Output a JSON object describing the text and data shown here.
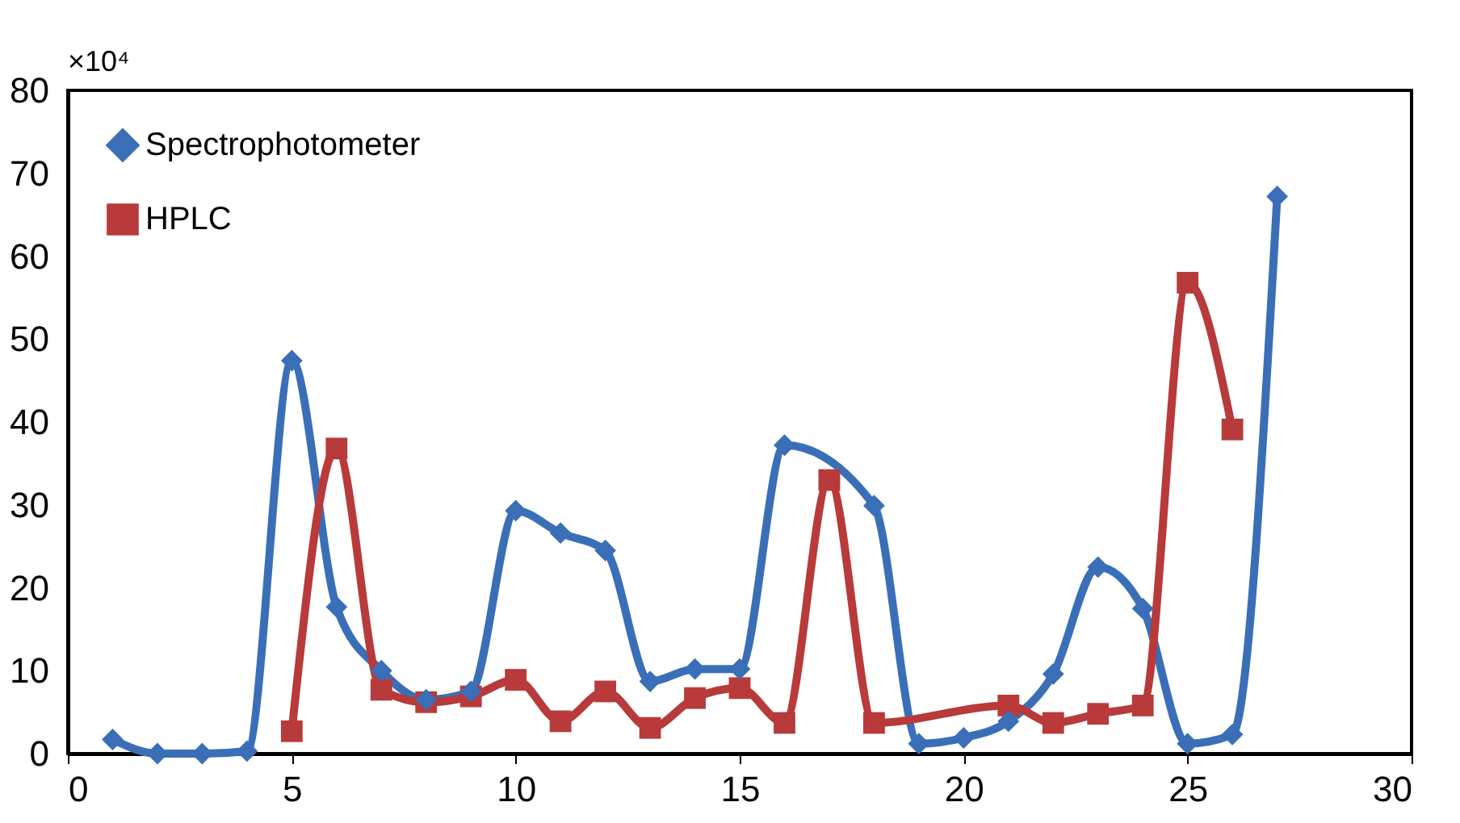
{
  "chart_data": {
    "type": "line",
    "annotations": [
      "×10⁴"
    ],
    "xlim": [
      0,
      30
    ],
    "xticks": [
      0,
      5,
      10,
      15,
      20,
      25,
      30
    ],
    "ylim": [
      0,
      80
    ],
    "yticks": [
      0,
      10,
      20,
      30,
      40,
      50,
      60,
      70,
      80
    ],
    "legend": "top left",
    "grid": false,
    "series": [
      {
        "name": "Spectrophotometer",
        "color": "#3a6fb8",
        "marker": "diamond",
        "x": [
          1,
          2,
          3,
          4,
          5,
          6,
          7,
          8,
          9,
          10,
          11,
          12,
          13,
          14,
          15,
          16,
          18,
          19,
          20,
          21,
          22,
          23,
          24,
          25,
          26,
          27
        ],
        "values": [
          1.7,
          0,
          0,
          0.3,
          47.4,
          17.7,
          10,
          6.5,
          7.5,
          29.3,
          26.6,
          24.5,
          8.7,
          10.2,
          10.2,
          37.2,
          29.9,
          1.2,
          1.9,
          3.9,
          9.6,
          22.5,
          17.5,
          1.2,
          2.3,
          67.2
        ]
      },
      {
        "name": "HPLC",
        "color": "#b83a3a",
        "marker": "square",
        "x": [
          5,
          6,
          7,
          8,
          9,
          10,
          11,
          12,
          13,
          14,
          15,
          16,
          17,
          18,
          21,
          22,
          23,
          24,
          25,
          26
        ],
        "values": [
          2.7,
          36.8,
          7.7,
          6.2,
          6.9,
          8.9,
          3.9,
          7.5,
          3.1,
          6.7,
          7.9,
          3.7,
          33,
          3.7,
          5.8,
          3.7,
          4.8,
          5.8,
          56.8,
          39.1
        ]
      }
    ]
  }
}
